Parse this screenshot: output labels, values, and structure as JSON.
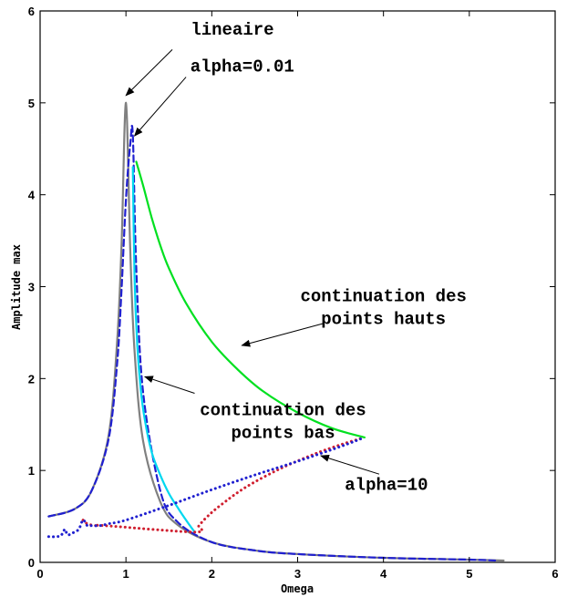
{
  "chart_data": {
    "type": "line",
    "title": "",
    "xlabel": "Omega",
    "ylabel": "Amplitude max",
    "xlim": [
      0,
      6
    ],
    "ylim": [
      0,
      6
    ],
    "xticks": [
      "0",
      "1",
      "2",
      "3",
      "4",
      "5",
      "6"
    ],
    "yticks": [
      "0",
      "1",
      "2",
      "3",
      "4",
      "5",
      "6"
    ],
    "grid": false,
    "legend": "none",
    "series": [
      {
        "color": "#808080",
        "style": "solid",
        "x": [
          0.1,
          0.4,
          0.6,
          0.8,
          0.9,
          0.95,
          1.0,
          1.05,
          1.1,
          1.2,
          1.4,
          1.6,
          2.0,
          2.5,
          3.0,
          4.0,
          5.0,
          5.4
        ],
        "y": [
          0.5,
          0.58,
          0.78,
          1.39,
          2.45,
          3.5,
          5.0,
          3.4,
          2.3,
          1.32,
          0.66,
          0.41,
          0.22,
          0.13,
          0.09,
          0.05,
          0.03,
          0.02
        ]
      },
      {
        "color": "#2020d0",
        "style": "dashed",
        "x": [
          0.1,
          0.4,
          0.6,
          0.8,
          0.9,
          0.95,
          1.0,
          1.05,
          1.08,
          1.12,
          1.2,
          1.4,
          1.6,
          2.0,
          2.5,
          3.0,
          4.0,
          5.0,
          5.3
        ],
        "y": [
          0.5,
          0.58,
          0.78,
          1.35,
          2.2,
          3.0,
          3.95,
          4.55,
          4.65,
          3.2,
          1.85,
          0.78,
          0.44,
          0.22,
          0.13,
          0.09,
          0.05,
          0.03,
          0.02
        ]
      },
      {
        "color": "#00d8f0",
        "style": "solid",
        "x": [
          1.08,
          1.1,
          1.13,
          1.17,
          1.22,
          1.3,
          1.4,
          1.5,
          1.6,
          1.7,
          1.8
        ],
        "y": [
          4.3,
          3.1,
          2.4,
          1.9,
          1.55,
          1.2,
          0.95,
          0.75,
          0.6,
          0.46,
          0.33
        ]
      },
      {
        "color": "#00e020",
        "style": "solid",
        "x": [
          1.12,
          1.2,
          1.3,
          1.4,
          1.5,
          1.7,
          2.0,
          2.3,
          2.6,
          3.0,
          3.4,
          3.78
        ],
        "y": [
          4.36,
          4.1,
          3.75,
          3.45,
          3.2,
          2.82,
          2.4,
          2.1,
          1.86,
          1.63,
          1.46,
          1.36
        ]
      },
      {
        "color": "#d02030",
        "style": "dotted",
        "x": [
          0.5,
          0.55,
          0.65,
          0.75,
          1.8,
          1.85,
          1.95,
          2.1,
          2.4,
          2.8,
          3.2,
          3.5,
          3.78
        ],
        "y": [
          0.46,
          0.42,
          0.4,
          0.4,
          0.33,
          0.4,
          0.5,
          0.62,
          0.82,
          1.02,
          1.18,
          1.28,
          1.36
        ]
      },
      {
        "color": "#2020d0",
        "style": "dotted",
        "x": [
          0.1,
          0.2,
          0.25,
          0.29,
          0.32,
          0.38,
          0.45,
          0.5,
          0.55,
          0.6,
          0.7,
          0.8,
          1.0,
          1.5,
          2.0,
          2.5,
          3.0,
          3.5,
          3.78
        ],
        "y": [
          0.28,
          0.28,
          0.3,
          0.36,
          0.3,
          0.32,
          0.36,
          0.46,
          0.4,
          0.4,
          0.4,
          0.42,
          0.46,
          0.62,
          0.79,
          0.95,
          1.1,
          1.26,
          1.36
        ]
      }
    ],
    "annotations": [
      {
        "lines": [
          "lineaire"
        ],
        "text_at": [
          2.24,
          5.74
        ],
        "anchor": "middle",
        "arrow_from": [
          1.54,
          5.58
        ],
        "arrow_to": [
          1.0,
          5.08
        ]
      },
      {
        "lines": [
          "alpha=0.01"
        ],
        "text_at": [
          1.75,
          5.34
        ],
        "anchor": "start",
        "arrow_from": [
          1.7,
          5.28
        ],
        "arrow_to": [
          1.1,
          4.64
        ]
      },
      {
        "lines": [
          "continuation des",
          "points hauts"
        ],
        "text_at": [
          4.0,
          2.84
        ],
        "anchor": "middle",
        "arrow_from": [
          3.3,
          2.6
        ],
        "arrow_to": [
          2.35,
          2.36
        ]
      },
      {
        "lines": [
          "continuation des",
          "points bas"
        ],
        "text_at": [
          2.83,
          1.6
        ],
        "anchor": "middle",
        "arrow_from": [
          1.8,
          1.84
        ],
        "arrow_to": [
          1.22,
          2.02
        ]
      },
      {
        "lines": [
          "alpha=10"
        ],
        "text_at": [
          3.55,
          0.79
        ],
        "anchor": "start",
        "arrow_from": [
          3.95,
          0.96
        ],
        "arrow_to": [
          3.27,
          1.16
        ]
      }
    ]
  }
}
